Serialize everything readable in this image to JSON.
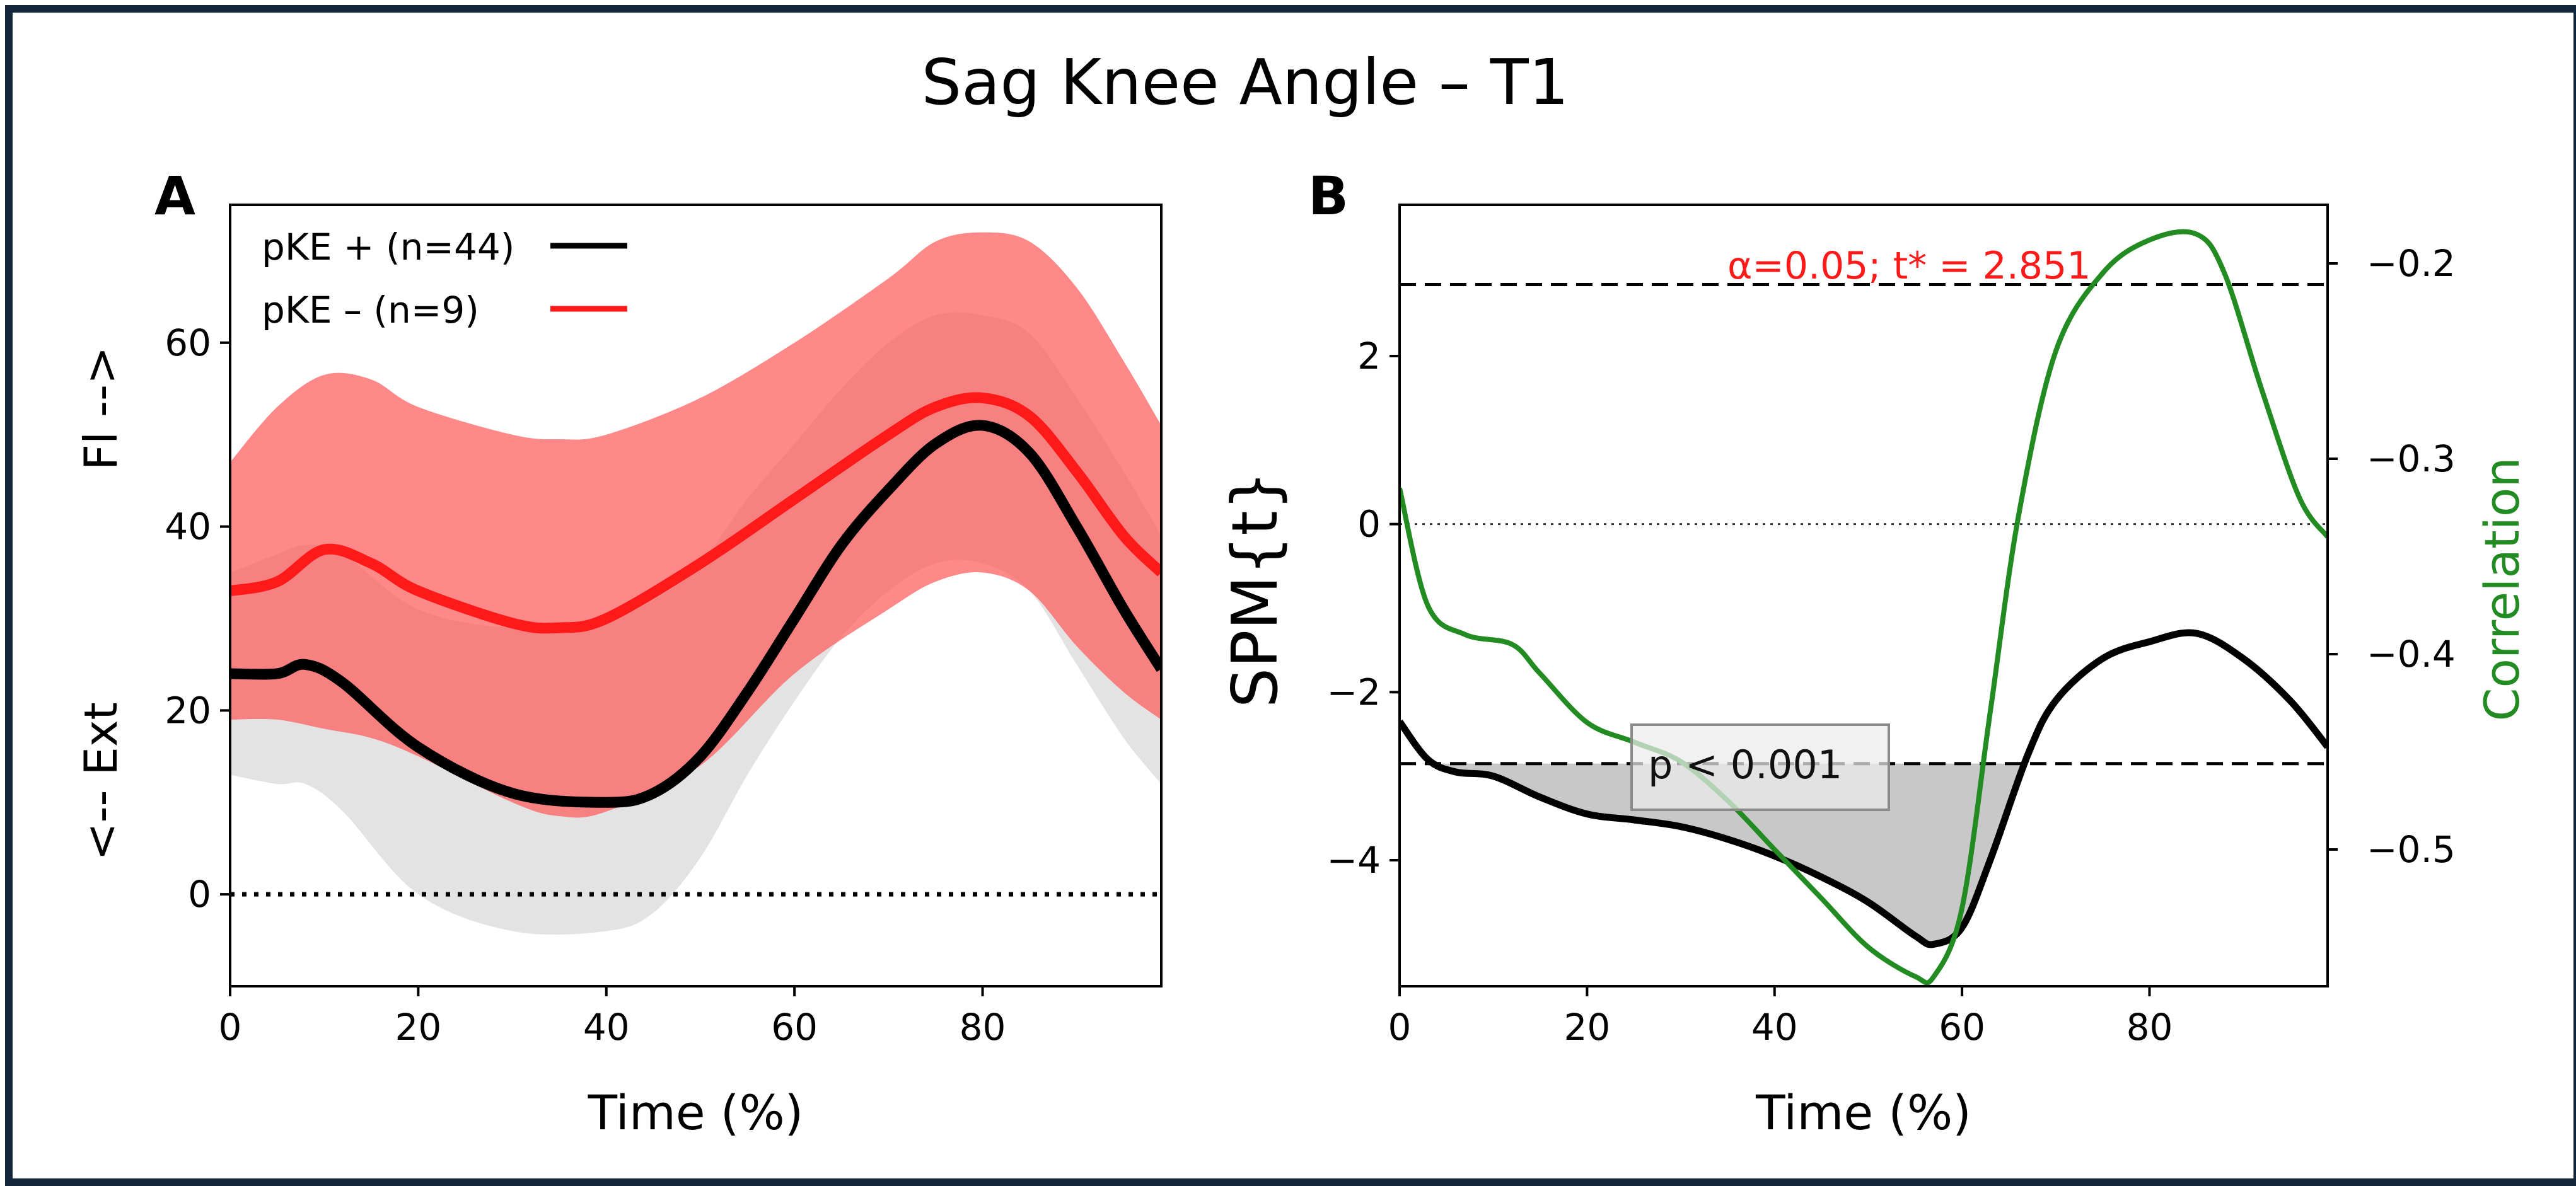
{
  "figure": {
    "title": "Sag Knee Angle – T1",
    "frame_color": "#13273c"
  },
  "chart_data": [
    {
      "panel": "A",
      "type": "line",
      "title": "",
      "xlabel": "Time (%)",
      "ylabel_top": "Fl -->",
      "ylabel_bottom": "<-- Ext",
      "xlim": [
        0,
        99
      ],
      "ylim": [
        -10,
        75
      ],
      "xticks": [
        0,
        20,
        40,
        60,
        80
      ],
      "yticks": [
        0,
        20,
        40,
        60
      ],
      "zero_line": {
        "y": 0,
        "style": "dotted",
        "color": "#000000"
      },
      "legend": {
        "position": "top-left"
      },
      "series": [
        {
          "name": "pKE + (n=44)",
          "color": "#000000",
          "band_color": "#d9d9d9",
          "x": [
            0,
            5,
            8,
            12,
            20,
            30,
            40,
            45,
            50,
            55,
            60,
            65,
            70,
            75,
            80,
            85,
            90,
            95,
            99
          ],
          "mean": [
            24,
            24,
            25,
            23,
            16,
            11,
            10,
            11,
            15,
            22,
            30,
            38,
            44,
            49,
            51,
            48,
            40,
            31,
            24.5
          ],
          "upper": [
            35,
            37,
            38,
            37,
            31,
            29,
            30,
            32,
            36,
            43,
            49,
            55,
            60,
            63,
            63,
            61,
            54,
            46,
            39
          ],
          "lower": [
            13,
            12,
            12,
            9,
            0,
            -4,
            -4,
            -2,
            4,
            13,
            21,
            28,
            33,
            36,
            36,
            33,
            25,
            17,
            12
          ]
        },
        {
          "name": "pKE – (n=9)",
          "color": "#ff1a1a",
          "band_color": "#ff5a5a",
          "x": [
            0,
            5,
            10,
            15,
            20,
            30,
            35,
            40,
            50,
            60,
            70,
            75,
            80,
            85,
            90,
            95,
            99
          ],
          "mean": [
            33,
            34,
            37.5,
            36,
            33,
            29.5,
            29,
            30,
            36,
            43,
            50,
            53,
            54,
            52,
            46,
            39,
            35
          ],
          "upper": [
            47,
            53,
            56.5,
            56,
            53,
            50,
            49.5,
            50,
            54,
            60,
            67,
            71,
            72,
            71,
            66,
            58,
            51
          ],
          "lower": [
            19,
            19,
            18,
            17,
            15,
            10,
            8.5,
            9,
            14,
            24,
            31,
            34,
            35,
            33,
            27,
            22,
            19
          ]
        }
      ]
    },
    {
      "panel": "B",
      "type": "line",
      "title": "",
      "xlabel": "Time (%)",
      "ylabel": "SPM{t}",
      "ylabel_right": "Correlation",
      "xlim": [
        0,
        99
      ],
      "ylim": [
        -5.5,
        3.8
      ],
      "ylim_right": [
        -0.57,
        -0.17
      ],
      "xticks": [
        0,
        20,
        40,
        60,
        80
      ],
      "yticks": [
        -4,
        -2,
        0,
        2
      ],
      "yticks_right": [
        -0.5,
        -0.4,
        -0.3,
        -0.2
      ],
      "threshold": {
        "t_star": 2.851,
        "label": "α=0.05; t* = 2.851",
        "label_color": "#ff1a1a"
      },
      "cluster": {
        "x_start": 2.5,
        "x_end": 67.5,
        "label": "p < 0.001",
        "fill": "#c8c8c8"
      },
      "series": [
        {
          "name": "SPM{t}",
          "axis": "left",
          "color": "#000000",
          "x": [
            0,
            3,
            6,
            10,
            15,
            20,
            25,
            30,
            35,
            40,
            45,
            50,
            55,
            57,
            60,
            63,
            67,
            70,
            75,
            80,
            85,
            90,
            95,
            99
          ],
          "y": [
            -2.35,
            -2.8,
            -2.95,
            -3.0,
            -3.25,
            -3.45,
            -3.52,
            -3.6,
            -3.75,
            -3.95,
            -4.2,
            -4.5,
            -4.9,
            -5.0,
            -4.8,
            -4.0,
            -2.75,
            -2.1,
            -1.6,
            -1.4,
            -1.3,
            -1.6,
            -2.1,
            -2.65
          ]
        },
        {
          "name": "Correlation",
          "axis": "right",
          "color": "#228b22",
          "x": [
            0,
            3,
            7,
            12,
            15,
            20,
            25,
            30,
            35,
            40,
            45,
            50,
            55,
            57,
            60,
            63,
            66,
            70,
            75,
            80,
            85,
            88,
            92,
            96,
            99
          ],
          "y": [
            -0.315,
            -0.375,
            -0.39,
            -0.395,
            -0.41,
            -0.435,
            -0.445,
            -0.455,
            -0.475,
            -0.5,
            -0.525,
            -0.55,
            -0.565,
            -0.565,
            -0.53,
            -0.43,
            -0.33,
            -0.245,
            -0.205,
            -0.188,
            -0.185,
            -0.205,
            -0.265,
            -0.32,
            -0.34
          ]
        }
      ]
    }
  ]
}
